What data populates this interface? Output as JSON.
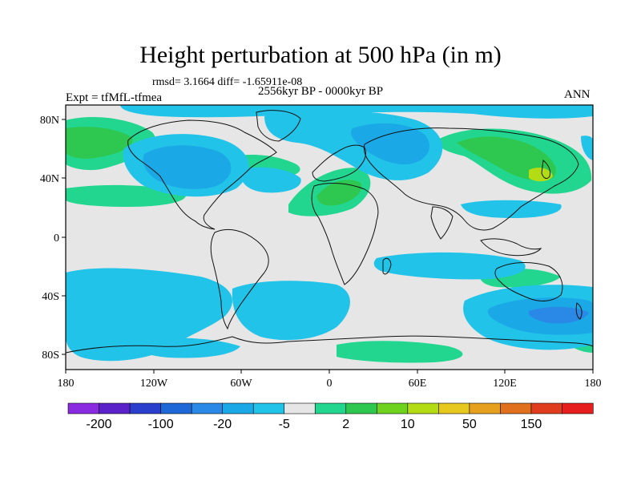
{
  "figure": {
    "title": "Height perturbation at 500 hPa (in m)",
    "stats": "rmsd= 3.1664 diff= -1.65911e-08",
    "experiment": "Expt = tfMfL-tfmea",
    "period": "2556kyr BP - 0000kyr BP",
    "season": "ANN"
  },
  "axes": {
    "x_ticks": [
      "180",
      "120W",
      "60W",
      "0",
      "60E",
      "120E",
      "180"
    ],
    "y_ticks": [
      "80N",
      "40N",
      "0",
      "40S",
      "80S"
    ]
  },
  "colorbar": {
    "labels": [
      "-200",
      "-100",
      "-20",
      "-5",
      "2",
      "10",
      "50",
      "150"
    ],
    "colors": [
      "#8a2be2",
      "#5a22c8",
      "#2a3fcc",
      "#1f68d8",
      "#2a88e6",
      "#1aa8e6",
      "#22c3e8",
      "#e6e6e6",
      "#22d690",
      "#2ec850",
      "#6ed21e",
      "#b4dc14",
      "#e6c81e",
      "#e6a01e",
      "#e0701e",
      "#e03c1e",
      "#e61e1e"
    ]
  },
  "map_colors": {
    "land_bg": "#e6e6e6",
    "neg_1": "#22c3e8",
    "neg_2": "#1aa8e6",
    "neg_3": "#2a88e6",
    "pos_1": "#22d690",
    "pos_2": "#2ec850",
    "pos_3": "#b4dc14"
  }
}
